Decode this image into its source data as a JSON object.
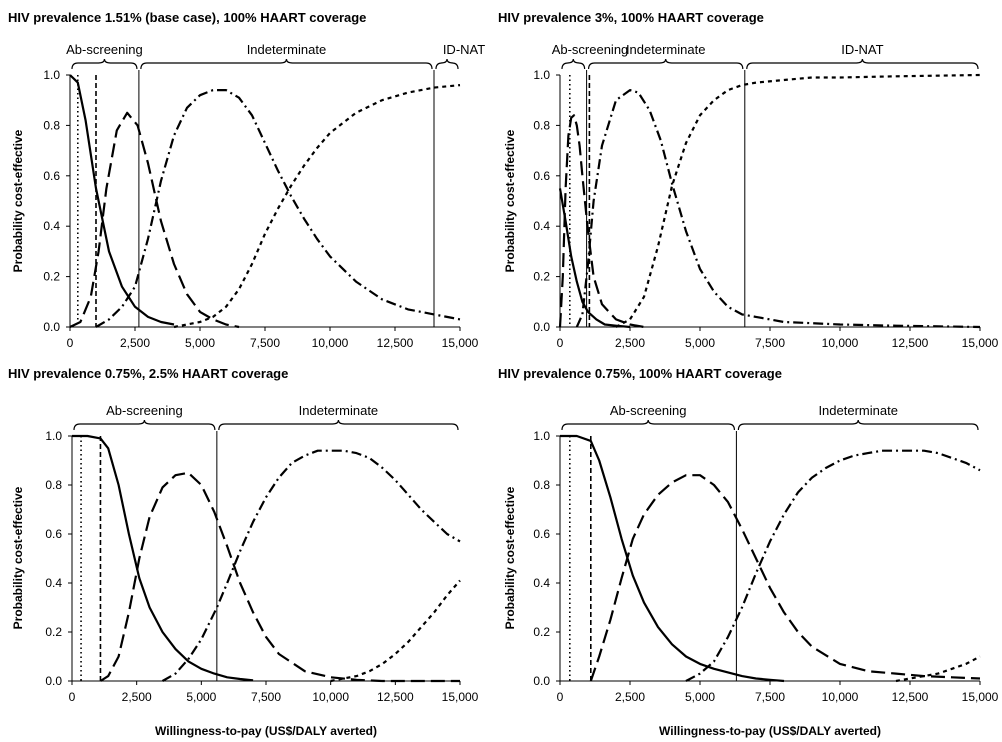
{
  "figure": {
    "xlabel": "Willingness-to-pay (US$/DALY averted)",
    "ylabel": "Probability cost-effective"
  },
  "chart_data": [
    {
      "type": "line",
      "title": "HIV prevalence 1.51% (base case), 100% HAART coverage",
      "xlim": [
        0,
        15000
      ],
      "ylim": [
        0,
        1
      ],
      "xticks": [
        "0",
        "2,500",
        "5,000",
        "7,500",
        "10,000",
        "12,500",
        "15,000"
      ],
      "yticks": [
        "0.0",
        "0.2",
        "0.4",
        "0.6",
        "0.8",
        "1.0"
      ],
      "grid": false,
      "vlines": [
        {
          "x": 300,
          "style": "dotted"
        },
        {
          "x": 1000,
          "style": "dashed"
        }
      ],
      "boundaries": [
        2650,
        14000
      ],
      "regions": [
        {
          "label": "Ab-screening",
          "from": 0,
          "to": 2650
        },
        {
          "label": "Indeterminate",
          "from": 2650,
          "to": 14000
        },
        {
          "label": "ID-NAT",
          "from": 14000,
          "to": 15000
        }
      ],
      "series": [
        {
          "style": "solid",
          "x": [
            0,
            300,
            600,
            1000,
            1500,
            2000,
            2500,
            3000,
            3500,
            4000
          ],
          "y": [
            1.0,
            0.97,
            0.82,
            0.55,
            0.3,
            0.16,
            0.08,
            0.04,
            0.02,
            0.01
          ]
        },
        {
          "style": "long-dash",
          "x": [
            0,
            400,
            800,
            1100,
            1400,
            1800,
            2200,
            2600,
            3000,
            3500,
            4000,
            4500,
            5000,
            5500,
            6000,
            6500
          ],
          "y": [
            0.0,
            0.02,
            0.12,
            0.3,
            0.55,
            0.78,
            0.85,
            0.8,
            0.65,
            0.42,
            0.25,
            0.13,
            0.06,
            0.03,
            0.01,
            0.0
          ]
        },
        {
          "style": "dash-dot",
          "x": [
            1000,
            1500,
            2000,
            2500,
            3000,
            3500,
            4000,
            4500,
            5000,
            5500,
            6000,
            6500,
            7000,
            7500,
            8000,
            8500,
            9000,
            9500,
            10000,
            11000,
            12000,
            13000,
            14000,
            15000
          ],
          "y": [
            0.0,
            0.03,
            0.08,
            0.16,
            0.35,
            0.58,
            0.76,
            0.87,
            0.92,
            0.94,
            0.94,
            0.91,
            0.84,
            0.73,
            0.62,
            0.52,
            0.43,
            0.35,
            0.28,
            0.18,
            0.11,
            0.07,
            0.05,
            0.03
          ]
        },
        {
          "style": "short-dash",
          "x": [
            4000,
            5000,
            5500,
            6000,
            6500,
            7000,
            7500,
            8000,
            8500,
            9000,
            9500,
            10000,
            11000,
            12000,
            13000,
            14000,
            15000
          ],
          "y": [
            0.0,
            0.02,
            0.04,
            0.08,
            0.15,
            0.25,
            0.37,
            0.47,
            0.56,
            0.64,
            0.71,
            0.77,
            0.85,
            0.9,
            0.93,
            0.95,
            0.96
          ]
        }
      ]
    },
    {
      "type": "line",
      "title": "HIV prevalence 3%, 100% HAART coverage",
      "xlim": [
        0,
        15000
      ],
      "ylim": [
        0,
        1
      ],
      "xticks": [
        "0",
        "2,500",
        "5,000",
        "7,500",
        "10,000",
        "12,500",
        "15,000"
      ],
      "yticks": [
        "0.0",
        "0.2",
        "0.4",
        "0.6",
        "0.8",
        "1.0"
      ],
      "grid": false,
      "vlines": [
        {
          "x": 350,
          "style": "dotted"
        },
        {
          "x": 1050,
          "style": "dashed"
        }
      ],
      "boundaries": [
        950,
        6600
      ],
      "regions": [
        {
          "label": "Ab-screening",
          "from": 0,
          "to": 950
        },
        {
          "label": "Indeterminate",
          "from": 950,
          "to": 6600
        },
        {
          "label": "ID-NAT",
          "from": 6600,
          "to": 15000
        }
      ],
      "series": [
        {
          "style": "solid",
          "x": [
            0,
            200,
            400,
            600,
            800,
            1000,
            1300,
            1600,
            2000,
            2500
          ],
          "y": [
            0.55,
            0.42,
            0.28,
            0.18,
            0.1,
            0.06,
            0.03,
            0.01,
            0.005,
            0.0
          ]
        },
        {
          "style": "long-dash",
          "x": [
            0,
            100,
            200,
            300,
            400,
            500,
            600,
            700,
            800,
            1000,
            1200,
            1500,
            2000,
            2500,
            3000
          ],
          "y": [
            0.0,
            0.2,
            0.55,
            0.76,
            0.83,
            0.84,
            0.8,
            0.72,
            0.6,
            0.38,
            0.2,
            0.09,
            0.03,
            0.01,
            0.0
          ]
        },
        {
          "style": "dash-dot",
          "x": [
            600,
            800,
            1000,
            1200,
            1500,
            2000,
            2500,
            2800,
            3200,
            3600,
            4000,
            4500,
            5000,
            5500,
            6000,
            6500,
            7000,
            8000,
            9000,
            10000,
            12000,
            15000
          ],
          "y": [
            0.0,
            0.05,
            0.25,
            0.5,
            0.72,
            0.9,
            0.94,
            0.93,
            0.86,
            0.74,
            0.57,
            0.38,
            0.23,
            0.14,
            0.08,
            0.05,
            0.04,
            0.02,
            0.015,
            0.01,
            0.005,
            0.0
          ]
        },
        {
          "style": "short-dash",
          "x": [
            2000,
            2500,
            3000,
            3500,
            4000,
            4500,
            5000,
            5500,
            6000,
            6500,
            7000,
            8000,
            9000,
            10000,
            12000,
            15000
          ],
          "y": [
            0.0,
            0.03,
            0.12,
            0.32,
            0.56,
            0.73,
            0.84,
            0.9,
            0.94,
            0.96,
            0.97,
            0.98,
            0.99,
            0.99,
            0.995,
            1.0
          ]
        }
      ]
    },
    {
      "type": "line",
      "title": "HIV prevalence 0.75%, 2.5% HAART coverage",
      "xlim": [
        0,
        15000
      ],
      "ylim": [
        0,
        1
      ],
      "xticks": [
        "0",
        "2,500",
        "5,000",
        "7,500",
        "10,000",
        "12,500",
        "15,000"
      ],
      "yticks": [
        "0.0",
        "0.2",
        "0.4",
        "0.6",
        "0.8",
        "1.0"
      ],
      "grid": false,
      "vlines": [
        {
          "x": 350,
          "style": "dotted"
        },
        {
          "x": 1100,
          "style": "dashed"
        }
      ],
      "boundaries": [
        5600
      ],
      "regions": [
        {
          "label": "Ab-screening",
          "from": 0,
          "to": 5600
        },
        {
          "label": "Indeterminate",
          "from": 5600,
          "to": 15000
        }
      ],
      "series": [
        {
          "style": "solid",
          "x": [
            0,
            600,
            1100,
            1400,
            1800,
            2200,
            2600,
            3000,
            3500,
            4000,
            4500,
            5000,
            5500,
            6000,
            6500,
            7000
          ],
          "y": [
            1.0,
            1.0,
            0.99,
            0.95,
            0.8,
            0.6,
            0.42,
            0.3,
            0.2,
            0.13,
            0.08,
            0.05,
            0.03,
            0.015,
            0.008,
            0.003
          ]
        },
        {
          "style": "long-dash",
          "x": [
            1100,
            1400,
            1800,
            2200,
            2600,
            3000,
            3500,
            4000,
            4500,
            5000,
            5500,
            6000,
            6500,
            7000,
            7500,
            8000,
            9000,
            10000,
            11000,
            12000,
            15000
          ],
          "y": [
            0.0,
            0.02,
            0.1,
            0.28,
            0.5,
            0.67,
            0.79,
            0.84,
            0.85,
            0.8,
            0.69,
            0.55,
            0.4,
            0.28,
            0.18,
            0.11,
            0.04,
            0.015,
            0.005,
            0.0,
            0.0
          ]
        },
        {
          "style": "dash-dot",
          "x": [
            3500,
            4000,
            4500,
            5000,
            5600,
            6000,
            6500,
            7000,
            7500,
            8000,
            8500,
            9000,
            9500,
            10000,
            10500,
            11000,
            11500,
            12000,
            12500,
            13000,
            13500,
            14000,
            14500,
            15000
          ],
          "y": [
            0.0,
            0.03,
            0.09,
            0.17,
            0.3,
            0.4,
            0.53,
            0.65,
            0.75,
            0.83,
            0.89,
            0.92,
            0.94,
            0.94,
            0.94,
            0.93,
            0.91,
            0.87,
            0.82,
            0.76,
            0.7,
            0.65,
            0.6,
            0.57
          ]
        },
        {
          "style": "short-dash",
          "x": [
            10000,
            10500,
            11000,
            11500,
            12000,
            12500,
            13000,
            13500,
            14000,
            14500,
            15000
          ],
          "y": [
            0.0,
            0.01,
            0.02,
            0.04,
            0.07,
            0.11,
            0.16,
            0.22,
            0.28,
            0.35,
            0.41
          ]
        }
      ]
    },
    {
      "type": "line",
      "title": "HIV prevalence 0.75%, 100% HAART coverage",
      "xlim": [
        0,
        15000
      ],
      "ylim": [
        0,
        1
      ],
      "xticks": [
        "0",
        "2,500",
        "5,000",
        "7,500",
        "10,000",
        "12,500",
        "15,000"
      ],
      "yticks": [
        "0.0",
        "0.2",
        "0.4",
        "0.6",
        "0.8",
        "1.0"
      ],
      "grid": false,
      "vlines": [
        {
          "x": 350,
          "style": "dotted"
        },
        {
          "x": 1100,
          "style": "dashed"
        }
      ],
      "boundaries": [
        6300
      ],
      "regions": [
        {
          "label": "Ab-screening",
          "from": 0,
          "to": 6300
        },
        {
          "label": "Indeterminate",
          "from": 6300,
          "to": 15000
        }
      ],
      "series": [
        {
          "style": "solid",
          "x": [
            0,
            600,
            1100,
            1400,
            1800,
            2200,
            2600,
            3000,
            3500,
            4000,
            4500,
            5000,
            5500,
            6000,
            6500,
            7000,
            7500,
            8000
          ],
          "y": [
            1.0,
            1.0,
            0.98,
            0.9,
            0.75,
            0.58,
            0.43,
            0.32,
            0.22,
            0.15,
            0.1,
            0.07,
            0.05,
            0.035,
            0.02,
            0.01,
            0.005,
            0.0
          ]
        },
        {
          "style": "long-dash",
          "x": [
            1100,
            1400,
            1800,
            2200,
            2600,
            3000,
            3500,
            4000,
            4500,
            5000,
            5500,
            6000,
            6500,
            7000,
            7500,
            8000,
            8500,
            9000,
            10000,
            11000,
            12000,
            13000,
            14000,
            15000
          ],
          "y": [
            0.0,
            0.1,
            0.25,
            0.42,
            0.58,
            0.68,
            0.76,
            0.81,
            0.84,
            0.84,
            0.8,
            0.73,
            0.62,
            0.5,
            0.38,
            0.28,
            0.2,
            0.14,
            0.07,
            0.04,
            0.03,
            0.02,
            0.015,
            0.01
          ]
        },
        {
          "style": "dash-dot",
          "x": [
            4500,
            5000,
            5500,
            6000,
            6500,
            7000,
            7500,
            8000,
            8500,
            9000,
            9500,
            10000,
            10500,
            11000,
            11500,
            12000,
            12500,
            13000,
            13500,
            14000,
            14500,
            15000
          ],
          "y": [
            0.0,
            0.03,
            0.08,
            0.18,
            0.3,
            0.44,
            0.57,
            0.68,
            0.77,
            0.83,
            0.87,
            0.9,
            0.92,
            0.93,
            0.94,
            0.94,
            0.94,
            0.94,
            0.93,
            0.91,
            0.89,
            0.86
          ]
        },
        {
          "style": "short-dash",
          "x": [
            12000,
            12500,
            13000,
            13500,
            14000,
            14500,
            15000
          ],
          "y": [
            0.0,
            0.01,
            0.02,
            0.03,
            0.05,
            0.07,
            0.1
          ]
        }
      ]
    }
  ]
}
